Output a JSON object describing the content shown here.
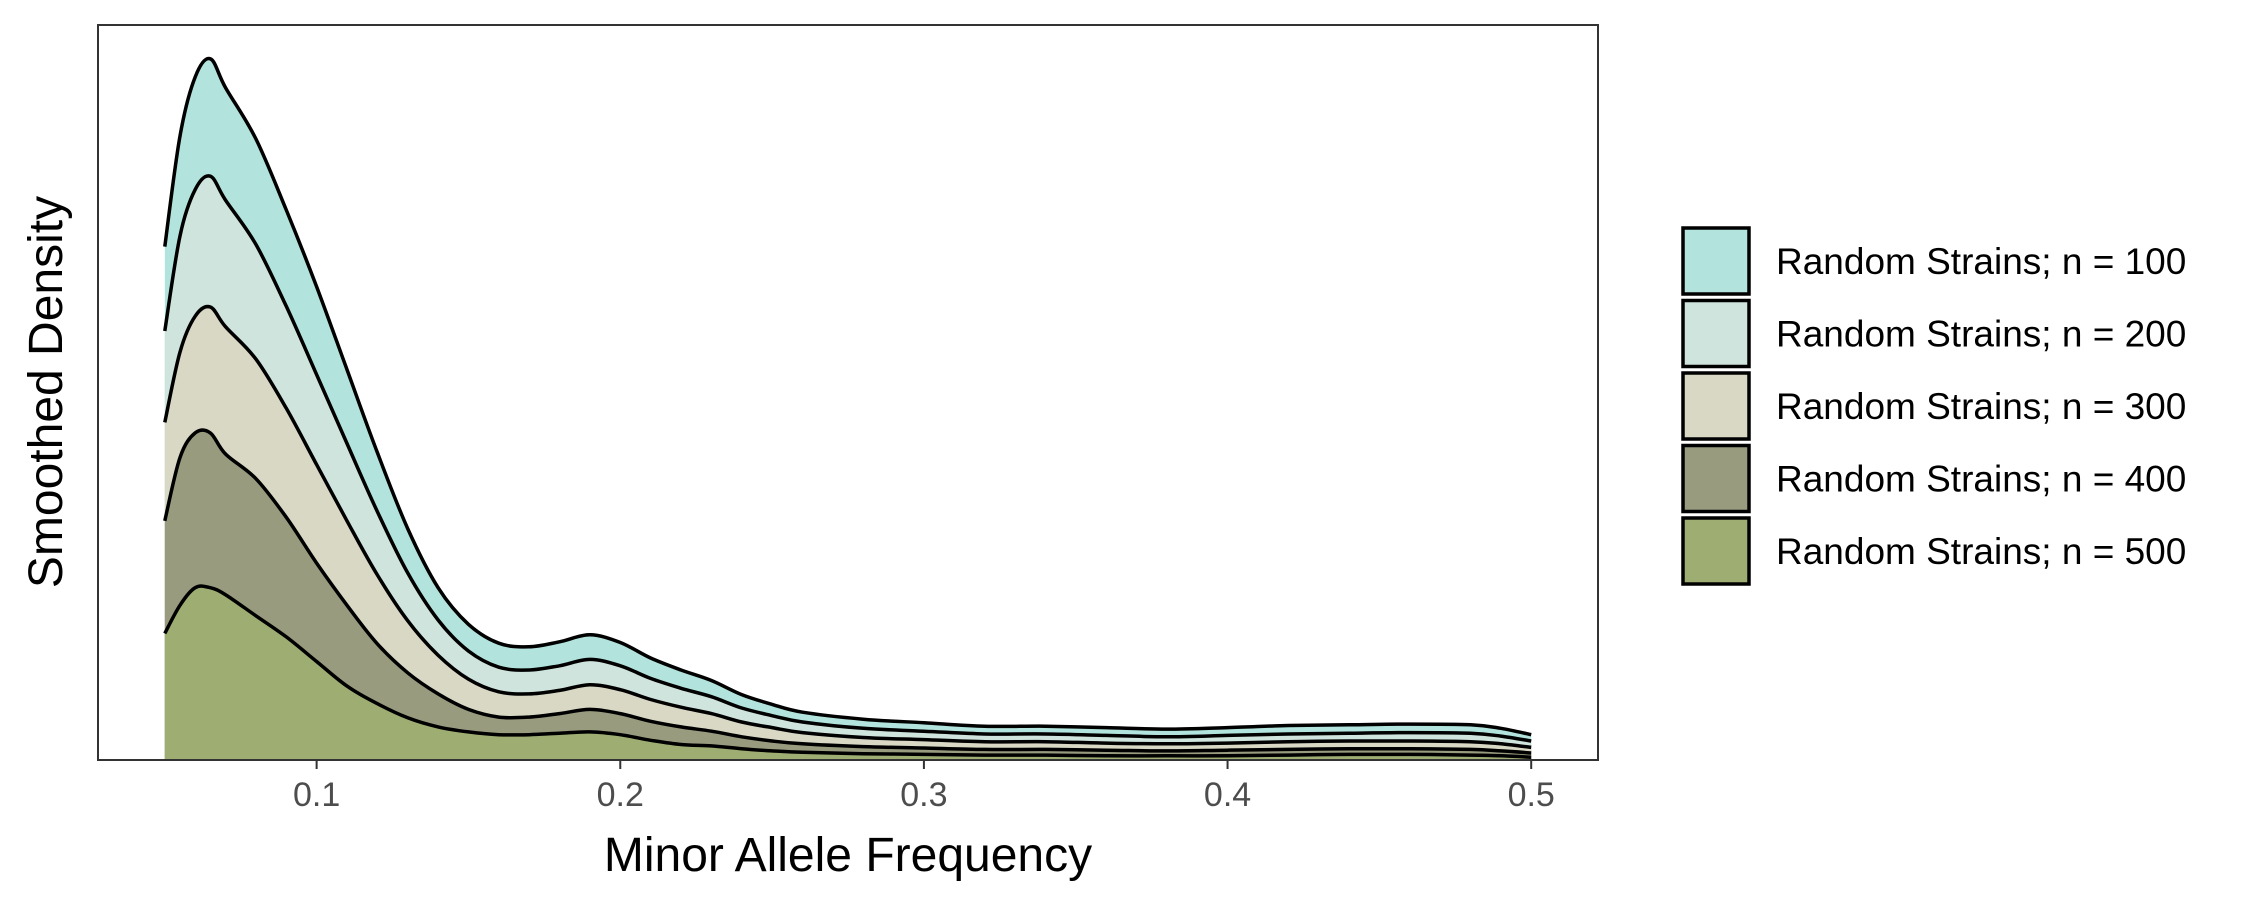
{
  "chart_data": {
    "type": "area",
    "title": "",
    "xlabel": "Minor Allele Frequency",
    "ylabel": "Smoothed Density",
    "xlim": [
      0.028,
      0.522
    ],
    "ylim": [
      0,
      1.045
    ],
    "x_ticks": [
      0.1,
      0.2,
      0.3,
      0.4,
      0.5
    ],
    "x_tick_labels": [
      "0.1",
      "0.2",
      "0.3",
      "0.4",
      "0.5"
    ],
    "y_ticks_shown": false,
    "grid": false,
    "stacked": true,
    "legend_position": "right",
    "x": [
      0.05,
      0.055,
      0.06,
      0.065,
      0.07,
      0.08,
      0.09,
      0.1,
      0.11,
      0.12,
      0.13,
      0.14,
      0.15,
      0.16,
      0.17,
      0.18,
      0.19,
      0.2,
      0.21,
      0.22,
      0.23,
      0.24,
      0.25,
      0.26,
      0.28,
      0.3,
      0.32,
      0.34,
      0.36,
      0.38,
      0.4,
      0.42,
      0.44,
      0.46,
      0.48,
      0.49,
      0.5
    ],
    "series": [
      {
        "name": "Random Strains; n = 500",
        "color": "#9eae73",
        "values": [
          0.18,
          0.22,
          0.245,
          0.245,
          0.235,
          0.205,
          0.175,
          0.14,
          0.105,
          0.08,
          0.06,
          0.047,
          0.04,
          0.036,
          0.036,
          0.038,
          0.04,
          0.036,
          0.028,
          0.022,
          0.02,
          0.016,
          0.013,
          0.011,
          0.009,
          0.008,
          0.007,
          0.007,
          0.006,
          0.006,
          0.006,
          0.007,
          0.008,
          0.008,
          0.007,
          0.006,
          0.004
        ]
      },
      {
        "name": "Random Strains; n = 400",
        "color": "#999b7f",
        "values": [
          0.16,
          0.21,
          0.22,
          0.22,
          0.2,
          0.195,
          0.17,
          0.14,
          0.115,
          0.085,
          0.064,
          0.047,
          0.032,
          0.025,
          0.025,
          0.028,
          0.032,
          0.03,
          0.027,
          0.025,
          0.021,
          0.017,
          0.014,
          0.012,
          0.01,
          0.009,
          0.008,
          0.008,
          0.008,
          0.007,
          0.008,
          0.008,
          0.008,
          0.008,
          0.008,
          0.007,
          0.006
        ]
      },
      {
        "name": "Random Strains; n = 300",
        "color": "#d8d8c5",
        "values": [
          0.14,
          0.15,
          0.166,
          0.179,
          0.181,
          0.17,
          0.155,
          0.14,
          0.12,
          0.098,
          0.074,
          0.055,
          0.043,
          0.036,
          0.033,
          0.033,
          0.035,
          0.034,
          0.031,
          0.028,
          0.025,
          0.021,
          0.019,
          0.016,
          0.013,
          0.012,
          0.011,
          0.011,
          0.01,
          0.01,
          0.01,
          0.011,
          0.011,
          0.011,
          0.011,
          0.01,
          0.008
        ]
      },
      {
        "name": "Random Strains; n = 200",
        "color": "#cfe4dd",
        "values": [
          0.13,
          0.165,
          0.18,
          0.186,
          0.18,
          0.163,
          0.145,
          0.128,
          0.11,
          0.09,
          0.068,
          0.05,
          0.04,
          0.035,
          0.034,
          0.035,
          0.036,
          0.034,
          0.03,
          0.027,
          0.024,
          0.02,
          0.017,
          0.015,
          0.013,
          0.012,
          0.011,
          0.011,
          0.011,
          0.01,
          0.011,
          0.011,
          0.011,
          0.012,
          0.012,
          0.011,
          0.009
        ]
      },
      {
        "name": "Random Strains; n = 100",
        "color": "#b2e4dd",
        "values": [
          0.12,
          0.142,
          0.16,
          0.167,
          0.16,
          0.15,
          0.137,
          0.125,
          0.105,
          0.084,
          0.063,
          0.046,
          0.038,
          0.034,
          0.033,
          0.034,
          0.035,
          0.033,
          0.029,
          0.026,
          0.023,
          0.019,
          0.016,
          0.014,
          0.013,
          0.012,
          0.011,
          0.011,
          0.011,
          0.011,
          0.011,
          0.012,
          0.012,
          0.012,
          0.012,
          0.011,
          0.009
        ]
      }
    ]
  }
}
